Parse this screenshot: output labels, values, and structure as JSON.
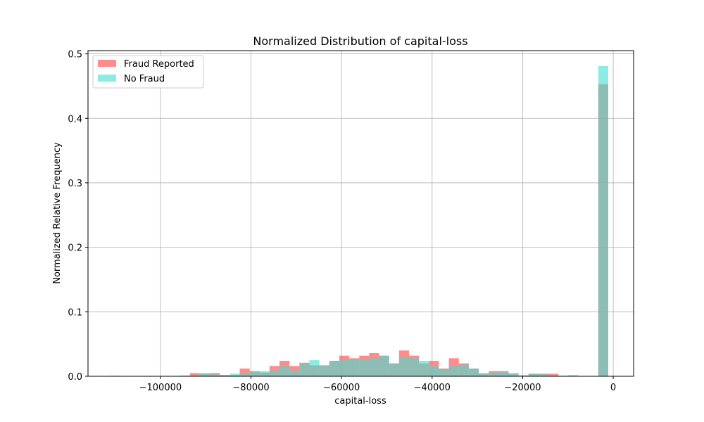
{
  "chart_data": {
    "type": "bar",
    "title": "Normalized Distribution of capital-loss",
    "xlabel": "capital-loss",
    "ylabel": "Normalized Relative Frequency",
    "xlim": [
      -116000,
      4500
    ],
    "ylim": [
      0,
      0.505
    ],
    "xticks": [
      -100000,
      -80000,
      -60000,
      -40000,
      -20000,
      0
    ],
    "xtick_labels": [
      "−100000",
      "−80000",
      "−60000",
      "−40000",
      "−20000",
      "0"
    ],
    "yticks": [
      0.0,
      0.1,
      0.2,
      0.3,
      0.4,
      0.5
    ],
    "ytick_labels": [
      "0.0",
      "0.1",
      "0.2",
      "0.3",
      "0.4",
      "0.5"
    ],
    "grid": true,
    "legend_position": "upper-left",
    "bin_edges": [
      -111100,
      -108900,
      -106700,
      -104500,
      -102300,
      -100100,
      -97900,
      -95700,
      -93500,
      -91300,
      -89100,
      -86900,
      -84700,
      -82500,
      -80300,
      -78100,
      -75900,
      -73700,
      -71500,
      -69300,
      -67100,
      -64900,
      -62700,
      -60500,
      -58300,
      -56100,
      -53900,
      -51700,
      -49500,
      -47300,
      -45100,
      -42900,
      -40700,
      -38500,
      -36300,
      -34100,
      -31900,
      -29700,
      -27500,
      -25300,
      -23100,
      -20900,
      -18700,
      -16500,
      -14300,
      -12100,
      -9900,
      -7700,
      -5500,
      -3300,
      -1100
    ],
    "series": [
      {
        "name": "Fraud Reported",
        "color": "#ff5555",
        "opacity": 0.68,
        "values": [
          0,
          0,
          0,
          0,
          0,
          0,
          0,
          0.001,
          0.005,
          0.004,
          0.005,
          0.002,
          0.002,
          0.012,
          0.008,
          0.006,
          0.016,
          0.024,
          0.016,
          0.021,
          0.017,
          0.017,
          0.024,
          0.032,
          0.028,
          0.032,
          0.036,
          0.032,
          0.02,
          0.04,
          0.032,
          0.02,
          0.024,
          0.012,
          0.028,
          0.02,
          0.012,
          0.004,
          0.008,
          0.008,
          0.004,
          0,
          0.004,
          0.004,
          0.004,
          0,
          0,
          0,
          0,
          0.453
        ]
      },
      {
        "name": "No Fraud",
        "color": "#40e0d0",
        "opacity": 0.6,
        "values": [
          0.001,
          0,
          0,
          0,
          0,
          0,
          0,
          0.001,
          0.002,
          0.005,
          0.003,
          0.002,
          0.004,
          0.005,
          0.008,
          0.008,
          0.009,
          0.016,
          0.009,
          0.02,
          0.025,
          0.017,
          0.024,
          0.025,
          0.027,
          0.026,
          0.028,
          0.032,
          0.02,
          0.03,
          0.028,
          0.024,
          0.016,
          0.011,
          0.016,
          0.018,
          0.012,
          0.005,
          0.006,
          0.007,
          0.005,
          0.002,
          0.004,
          0.003,
          0.001,
          0.001,
          0.002,
          0,
          0,
          0.481
        ]
      }
    ]
  }
}
